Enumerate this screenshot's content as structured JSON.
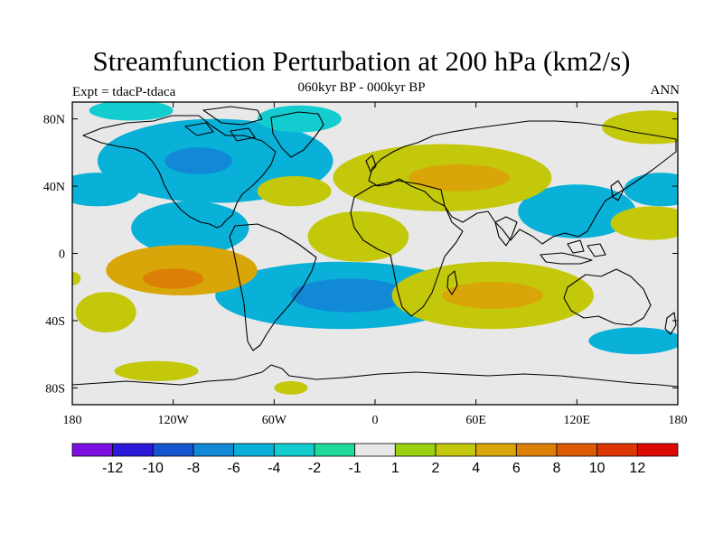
{
  "title": "Streamfunction Perturbation at 200 hPa (km2/s)",
  "subtitle": "060kyr BP - 000kyr BP",
  "experiment": "Expt = tdacP-tdaca",
  "period": "ANN",
  "map": {
    "projection": "cylindrical-equidistant",
    "lon_range": [
      -180,
      180
    ],
    "lat_range": [
      -90,
      90
    ],
    "x_ticks": [
      {
        "lon": -180,
        "label": "180"
      },
      {
        "lon": -120,
        "label": "120W"
      },
      {
        "lon": -60,
        "label": "60W"
      },
      {
        "lon": 0,
        "label": "0"
      },
      {
        "lon": 60,
        "label": "60E"
      },
      {
        "lon": 120,
        "label": "120E"
      },
      {
        "lon": 180,
        "label": "180"
      }
    ],
    "y_ticks": [
      {
        "lat": 80,
        "label": "80N"
      },
      {
        "lat": 40,
        "label": "40N"
      },
      {
        "lat": 0,
        "label": "0"
      },
      {
        "lat": -40,
        "label": "40S"
      },
      {
        "lat": -80,
        "label": "80S"
      }
    ]
  },
  "colorbar": {
    "colors": [
      "#7b0fe0",
      "#2b18d8",
      "#1655d0",
      "#1189d6",
      "#09b1d8",
      "#12ccd0",
      "#1dd99a",
      "#e8e8e8",
      "#9bd10c",
      "#c4c80a",
      "#d8a608",
      "#dc7f06",
      "#de5a05",
      "#dd3604",
      "#dc0a02"
    ],
    "labels": [
      {
        "value": "-12",
        "after": 1
      },
      {
        "value": "-10",
        "after": 2
      },
      {
        "value": "-8",
        "after": 3
      },
      {
        "value": "-6",
        "after": 4
      },
      {
        "value": "-4",
        "after": 5
      },
      {
        "value": "-2",
        "after": 6
      },
      {
        "value": "-1",
        "after": 7
      },
      {
        "value": "1",
        "after": 8
      },
      {
        "value": "2",
        "after": 9
      },
      {
        "value": "4",
        "after": 10
      },
      {
        "value": "6",
        "after": 11
      },
      {
        "value": "8",
        "after": 12
      },
      {
        "value": "10",
        "after": 13
      },
      {
        "value": "12",
        "after": 14
      }
    ]
  },
  "anomalies": [
    {
      "name": "blue-north-america",
      "lon": -95,
      "lat": 55,
      "rx": 70,
      "ry": 25,
      "level": -3
    },
    {
      "name": "blue-north-atlantic-core",
      "lon": -105,
      "lat": 55,
      "rx": 20,
      "ry": 8,
      "level": -4
    },
    {
      "name": "blue-central-america",
      "lon": -110,
      "lat": 15,
      "rx": 35,
      "ry": 16,
      "level": -3
    },
    {
      "name": "blue-south-atlantic",
      "lon": -20,
      "lat": -25,
      "rx": 75,
      "ry": 20,
      "level": -3
    },
    {
      "name": "blue-south-atlantic-core",
      "lon": -15,
      "lat": -25,
      "rx": 35,
      "ry": 10,
      "level": -4
    },
    {
      "name": "blue-west-pacific",
      "lon": 120,
      "lat": 25,
      "rx": 35,
      "ry": 16,
      "level": -3
    },
    {
      "name": "blue-east-pacific-north",
      "lon": -165,
      "lat": 38,
      "rx": 25,
      "ry": 10,
      "level": -3
    },
    {
      "name": "blue-far-east-north",
      "lon": 170,
      "lat": 38,
      "rx": 22,
      "ry": 10,
      "level": -3
    },
    {
      "name": "blue-south-pacific",
      "lon": 155,
      "lat": -52,
      "rx": 28,
      "ry": 8,
      "level": -3
    },
    {
      "name": "green-north-pacific",
      "lon": -145,
      "lat": 85,
      "rx": 25,
      "ry": 6,
      "level": -2
    },
    {
      "name": "green-arctic",
      "lon": -45,
      "lat": 80,
      "rx": 25,
      "ry": 8,
      "level": -2
    },
    {
      "name": "orange-south-pacific",
      "lon": -115,
      "lat": -10,
      "rx": 45,
      "ry": 15,
      "level": 3
    },
    {
      "name": "orange-south-pacific-core",
      "lon": -120,
      "lat": -15,
      "rx": 18,
      "ry": 6,
      "level": 4
    },
    {
      "name": "yellow-north-africa-europe",
      "lon": 40,
      "lat": 45,
      "rx": 65,
      "ry": 20,
      "level": 2
    },
    {
      "name": "yellow-north-africa-core",
      "lon": 50,
      "lat": 45,
      "rx": 30,
      "ry": 8,
      "level": 3
    },
    {
      "name": "yellow-north-atlantic",
      "lon": -48,
      "lat": 37,
      "rx": 22,
      "ry": 9,
      "level": 2
    },
    {
      "name": "yellow-west-africa",
      "lon": -10,
      "lat": 10,
      "rx": 30,
      "ry": 15,
      "level": 2
    },
    {
      "name": "yellow-indian-ocean",
      "lon": 70,
      "lat": -25,
      "rx": 60,
      "ry": 20,
      "level": 2
    },
    {
      "name": "yellow-indian-ocean-core",
      "lon": 70,
      "lat": -25,
      "rx": 30,
      "ry": 8,
      "level": 3
    },
    {
      "name": "yellow-west-pacific",
      "lon": 165,
      "lat": 18,
      "rx": 25,
      "ry": 10,
      "level": 2
    },
    {
      "name": "yellow-east-pacific",
      "lon": -160,
      "lat": -35,
      "rx": 18,
      "ry": 12,
      "level": 2
    },
    {
      "name": "yellow-north-pacific",
      "lon": 165,
      "lat": 75,
      "rx": 30,
      "ry": 10,
      "level": 2
    },
    {
      "name": "yellow-south-pacific",
      "lon": -180,
      "lat": -15,
      "rx": 5,
      "ry": 4,
      "level": 2
    },
    {
      "name": "yellow-antarctic",
      "lon": -130,
      "lat": -70,
      "rx": 25,
      "ry": 6,
      "level": 2
    },
    {
      "name": "green-antarctic",
      "lon": -50,
      "lat": -80,
      "rx": 10,
      "ry": 4,
      "level": 2
    }
  ]
}
